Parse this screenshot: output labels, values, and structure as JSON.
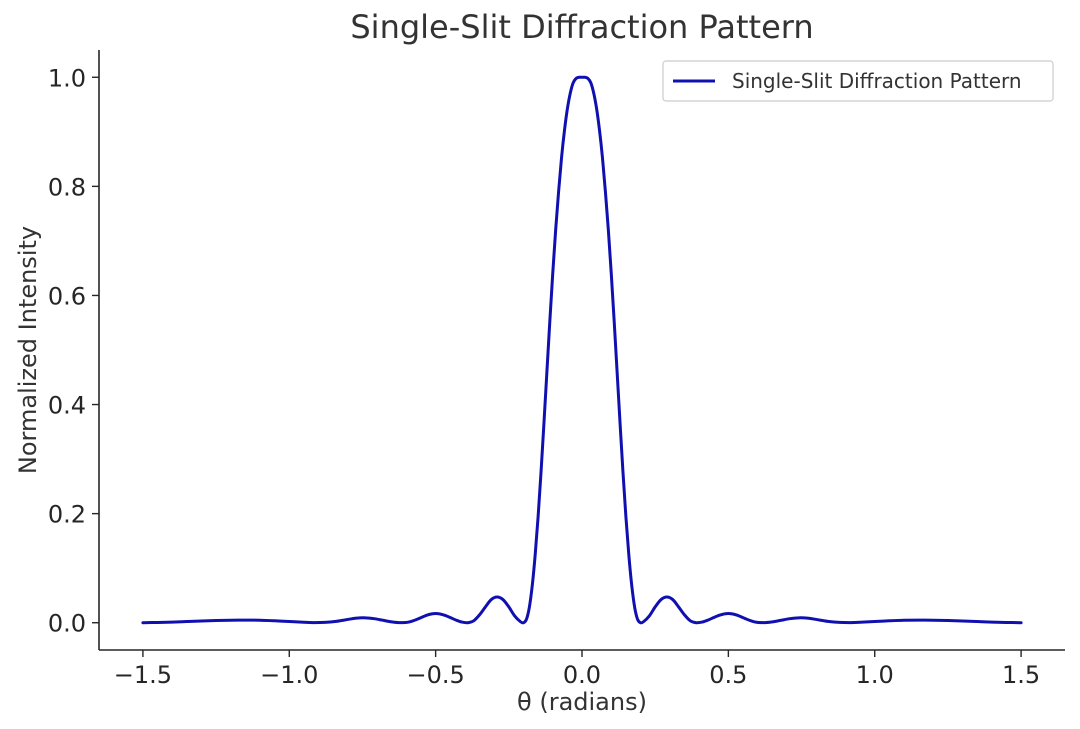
{
  "chart_data": {
    "type": "line",
    "title": "Single-Slit Diffraction Pattern",
    "xlabel": "θ (radians)",
    "ylabel": "Normalized Intensity",
    "xlim": [
      -1.65,
      1.65
    ],
    "ylim": [
      -0.05,
      1.05
    ],
    "grid": false,
    "legend_position": "top-right",
    "x_ticks": [
      {
        "value": -1.5,
        "label": "−1.5"
      },
      {
        "value": -1.0,
        "label": "−1.0"
      },
      {
        "value": -0.5,
        "label": "−0.5"
      },
      {
        "value": 0.0,
        "label": "0.0"
      },
      {
        "value": 0.5,
        "label": "0.5"
      },
      {
        "value": 1.0,
        "label": "1.0"
      },
      {
        "value": 1.5,
        "label": "1.5"
      }
    ],
    "y_ticks": [
      {
        "value": 0.0,
        "label": "0.0"
      },
      {
        "value": 0.2,
        "label": "0.2"
      },
      {
        "value": 0.4,
        "label": "0.4"
      },
      {
        "value": 0.6,
        "label": "0.6"
      },
      {
        "value": 0.8,
        "label": "0.8"
      },
      {
        "value": 1.0,
        "label": "1.0"
      }
    ],
    "series": [
      {
        "name": "Single-Slit Diffraction Pattern",
        "color": "#1010b0",
        "x": [
          -1.5,
          -1.45,
          -1.4,
          -1.35,
          -1.3,
          -1.25,
          -1.2,
          -1.15,
          -1.1,
          -1.05,
          -1.0,
          -0.95,
          -0.92,
          -0.88,
          -0.84,
          -0.8,
          -0.77,
          -0.74,
          -0.71,
          -0.68,
          -0.65,
          -0.62,
          -0.59,
          -0.56,
          -0.53,
          -0.51,
          -0.49,
          -0.47,
          -0.45,
          -0.43,
          -0.41,
          -0.39,
          -0.37,
          -0.35,
          -0.33,
          -0.31,
          -0.29,
          -0.27,
          -0.25,
          -0.23,
          -0.21,
          -0.2,
          -0.19,
          -0.18,
          -0.17,
          -0.16,
          -0.15,
          -0.14,
          -0.13,
          -0.12,
          -0.11,
          -0.1,
          -0.09,
          -0.08,
          -0.07,
          -0.06,
          -0.05,
          -0.04,
          -0.03,
          -0.02,
          -0.01,
          0.0,
          0.01,
          0.02,
          0.03,
          0.04,
          0.05,
          0.06,
          0.07,
          0.08,
          0.09,
          0.1,
          0.11,
          0.12,
          0.13,
          0.14,
          0.15,
          0.16,
          0.17,
          0.18,
          0.19,
          0.2,
          0.21,
          0.23,
          0.25,
          0.27,
          0.29,
          0.31,
          0.33,
          0.35,
          0.37,
          0.39,
          0.41,
          0.43,
          0.45,
          0.47,
          0.49,
          0.51,
          0.53,
          0.56,
          0.59,
          0.62,
          0.65,
          0.68,
          0.71,
          0.74,
          0.77,
          0.8,
          0.84,
          0.88,
          0.92,
          0.95,
          1.0,
          1.05,
          1.1,
          1.15,
          1.2,
          1.25,
          1.3,
          1.35,
          1.4,
          1.45,
          1.5
        ],
        "y": [
          0.0,
          0.0005,
          0.0012,
          0.0022,
          0.0032,
          0.0041,
          0.0046,
          0.0048,
          0.0046,
          0.0036,
          0.0022,
          0.0008,
          0.0002,
          0.0006,
          0.0025,
          0.006,
          0.0085,
          0.009,
          0.0074,
          0.0045,
          0.0015,
          0.0001,
          0.0015,
          0.007,
          0.0138,
          0.0165,
          0.0165,
          0.0138,
          0.0095,
          0.0048,
          0.0012,
          0.0,
          0.0035,
          0.0145,
          0.029,
          0.0425,
          0.0472,
          0.0425,
          0.029,
          0.0125,
          0.0018,
          0.0,
          0.006,
          0.028,
          0.068,
          0.124,
          0.194,
          0.276,
          0.366,
          0.459,
          0.552,
          0.64,
          0.72,
          0.79,
          0.852,
          0.902,
          0.942,
          0.971,
          0.99,
          0.998,
          1.0,
          1.0,
          1.0,
          0.998,
          0.99,
          0.971,
          0.942,
          0.902,
          0.852,
          0.79,
          0.72,
          0.64,
          0.552,
          0.459,
          0.366,
          0.276,
          0.194,
          0.124,
          0.068,
          0.028,
          0.006,
          0.0,
          0.0018,
          0.0125,
          0.029,
          0.0425,
          0.0472,
          0.0425,
          0.029,
          0.0145,
          0.0035,
          0.0,
          0.0012,
          0.0048,
          0.0095,
          0.0138,
          0.0165,
          0.0165,
          0.0138,
          0.007,
          0.0015,
          0.0001,
          0.0015,
          0.0045,
          0.0074,
          0.009,
          0.0085,
          0.006,
          0.0025,
          0.0006,
          0.0002,
          0.0008,
          0.0022,
          0.0036,
          0.0046,
          0.0048,
          0.0046,
          0.0041,
          0.0032,
          0.0022,
          0.0012,
          0.0005,
          0.0
        ]
      }
    ]
  }
}
